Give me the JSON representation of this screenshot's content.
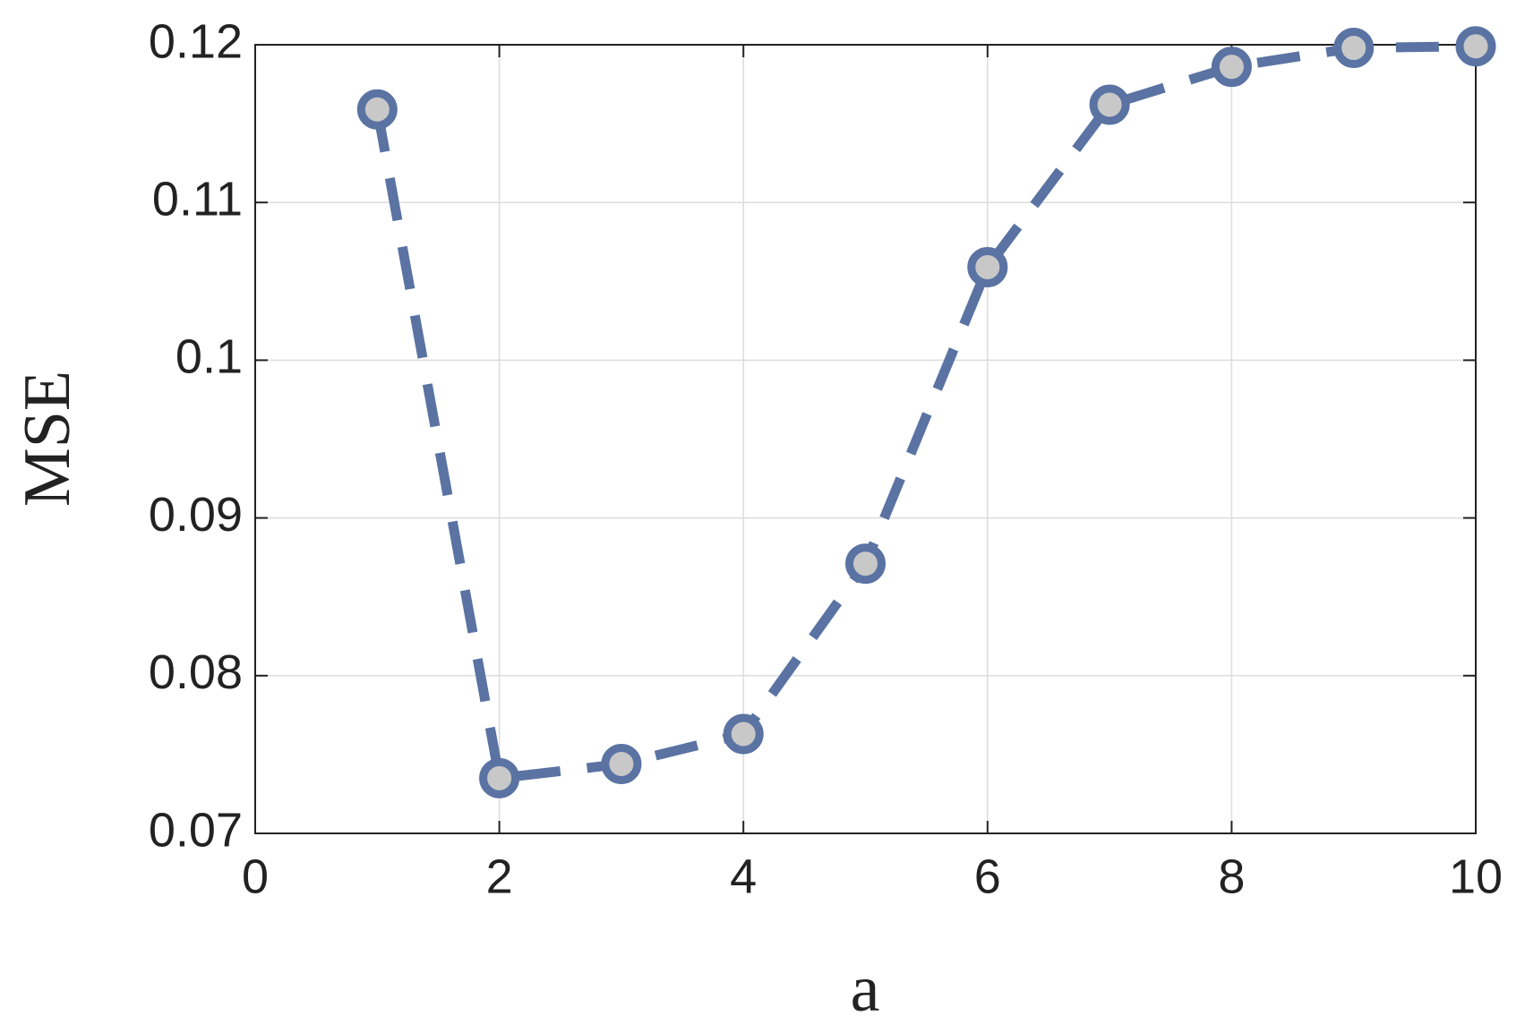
{
  "chart_data": {
    "type": "line",
    "x_label": "a",
    "y_label": "MSE",
    "x": [
      1,
      2,
      3,
      4,
      5,
      6,
      7,
      8,
      9,
      10
    ],
    "series": [
      {
        "color": "#5a73a3",
        "values": [
          0.1159,
          0.0735,
          0.0744,
          0.0763,
          0.0871,
          0.1059,
          0.1162,
          0.1186,
          0.1198,
          0.1199
        ]
      }
    ],
    "marker_fill": "#c8c8c8",
    "xlim": [
      0,
      10
    ],
    "xticks": [
      0,
      2,
      4,
      6,
      8,
      10
    ],
    "ylim": [
      0.07,
      0.12
    ],
    "yticks": [
      0.07,
      0.08,
      0.09,
      0.1,
      0.11,
      0.12
    ],
    "grid": true
  }
}
